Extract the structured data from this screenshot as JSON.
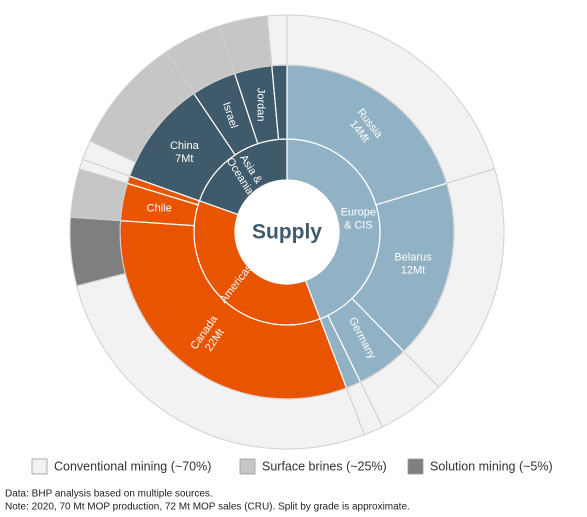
{
  "chart_data": {
    "type": "sunburst",
    "center_label": "Supply",
    "regions": [
      {
        "name_lines": [
          "Europe",
          "& CIS"
        ],
        "color": "#90b2c4",
        "countries": [
          {
            "label": [
              "Russia",
              "14Mt"
            ],
            "value": 14,
            "split": [
              14,
              0,
              0
            ]
          },
          {
            "label": [
              "Belarus",
              "12Mt"
            ],
            "value": 12,
            "split": [
              12,
              0,
              0
            ]
          },
          {
            "label": [
              "Germany"
            ],
            "value": 3.5,
            "split": [
              3.5,
              0,
              0
            ]
          },
          {
            "label": null,
            "value": 1,
            "split": [
              1,
              0,
              0
            ]
          }
        ]
      },
      {
        "name_lines": [
          "Americas"
        ],
        "color": "#e85400",
        "countries": [
          {
            "label": [
              "Canada",
              "22Mt"
            ],
            "value": 22,
            "split": [
              18.5,
              0,
              3.5
            ]
          },
          {
            "label": [
              "Chile"
            ],
            "value": 2.5,
            "split": [
              0,
              2.5,
              0
            ]
          },
          {
            "label": null,
            "value": 0.5,
            "split": [
              0.5,
              0,
              0
            ]
          }
        ]
      },
      {
        "name_lines": [
          "Asia &",
          "Oceania"
        ],
        "color": "#3f5a6b",
        "countries": [
          {
            "label": [
              "China",
              "7Mt"
            ],
            "value": 7,
            "split": [
              1,
              6,
              0
            ]
          },
          {
            "label": [
              "Israel"
            ],
            "value": 3,
            "split": [
              0,
              3,
              0
            ]
          },
          {
            "label": [
              "Jordan"
            ],
            "value": 2.5,
            "split": [
              0,
              2.5,
              0
            ]
          },
          {
            "label": null,
            "value": 1,
            "split": [
              1,
              0,
              0
            ]
          }
        ]
      }
    ],
    "legend": [
      {
        "name": "Conventional mining (~70%)",
        "color": "#f2f2f2"
      },
      {
        "name": "Surface brines (~25%)",
        "color": "#c6c6c6"
      },
      {
        "name": "Solution mining (~5%)",
        "color": "#7f7f7f"
      }
    ],
    "notes": [
      "Data: BHP analysis based on multiple sources.",
      "Note: 2020, 70 Mt MOP production, 72 Mt MOP sales (CRU). Split by grade is approximate."
    ]
  }
}
